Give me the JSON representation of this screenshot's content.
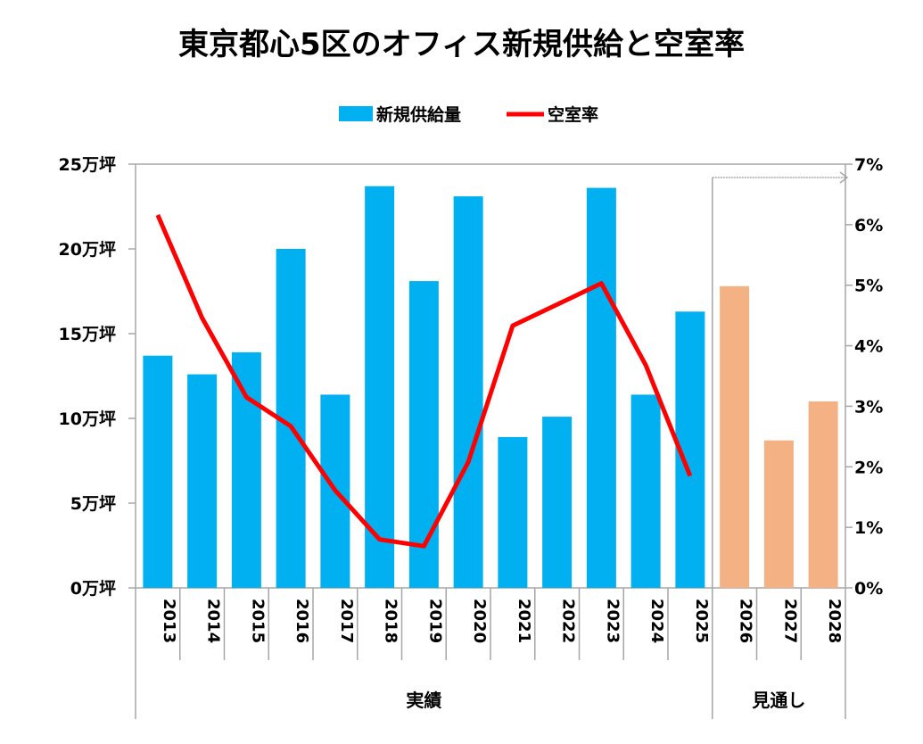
{
  "chart_data": {
    "type": "bar",
    "title": "東京都心5区のオフィス新規供給と空室率",
    "categories": [
      "2013",
      "2014",
      "2015",
      "2016",
      "2017",
      "2018",
      "2019",
      "2020",
      "2021",
      "2022",
      "2023",
      "2024",
      "2025",
      "2026",
      "2027",
      "2028"
    ],
    "groups": [
      {
        "label": "実績",
        "categories": [
          "2013",
          "2014",
          "2015",
          "2016",
          "2017",
          "2018",
          "2019",
          "2020",
          "2021",
          "2022",
          "2023",
          "2024",
          "2025"
        ]
      },
      {
        "label": "見通し",
        "categories": [
          "2026",
          "2027",
          "2028"
        ]
      }
    ],
    "series": [
      {
        "name": "新規供給量",
        "type": "bar",
        "axis": "left",
        "color": "#00B0F0",
        "forecast_color": "#F4B183",
        "values": [
          13.7,
          12.6,
          13.9,
          20.0,
          11.4,
          23.7,
          18.1,
          23.1,
          8.9,
          10.1,
          23.6,
          11.4,
          16.3,
          17.8,
          8.7,
          11.0
        ]
      },
      {
        "name": "空室率",
        "type": "line",
        "axis": "right",
        "color": "#FF0000",
        "values": [
          6.16,
          4.46,
          3.15,
          2.67,
          1.61,
          0.8,
          0.69,
          2.08,
          4.33,
          4.68,
          5.03,
          3.68,
          1.85,
          null,
          null,
          null
        ]
      }
    ],
    "y_left": {
      "ylim": [
        0,
        25
      ],
      "ticks": [
        0,
        5,
        10,
        15,
        20,
        25
      ],
      "tick_labels": [
        "0万坪",
        "5万坪",
        "10万坪",
        "15万坪",
        "20万坪",
        "25万坪"
      ]
    },
    "y_right": {
      "ylim": [
        0,
        7
      ],
      "ticks": [
        0,
        1,
        2,
        3,
        4,
        5,
        6,
        7
      ],
      "tick_labels": [
        "0%",
        "1%",
        "2%",
        "3%",
        "4%",
        "5%",
        "6%",
        "7%"
      ]
    },
    "legend": {
      "placement": "top",
      "entries": [
        "新規供給量",
        "空室率"
      ]
    },
    "grid": false
  }
}
